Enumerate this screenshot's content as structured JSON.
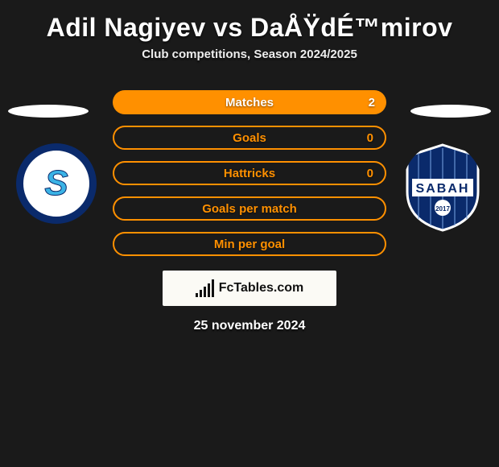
{
  "title": "Adil Nagiyev vs DaÅŸdÉ™mirov",
  "subtitle": "Club competitions, Season 2024/2025",
  "date": "25 november 2024",
  "accent_color": "#ff9000",
  "rows": [
    {
      "label": "Matches",
      "value": "2",
      "fill": true
    },
    {
      "label": "Goals",
      "value": "0",
      "fill": false
    },
    {
      "label": "Hattricks",
      "value": "0",
      "fill": false
    },
    {
      "label": "Goals per match",
      "value": "",
      "fill": false
    },
    {
      "label": "Min per goal",
      "value": "",
      "fill": false
    }
  ],
  "site_logo_text": "FcTables.com",
  "left_logo": {
    "ring": "#0a2a6b",
    "inner": "#ffffff",
    "letter": "S",
    "letter_color": "#3bb3e6"
  },
  "right_logo": {
    "bg": "#0a2a6b",
    "text": "SABAH",
    "text_color": "#ffffff",
    "year": "2017"
  }
}
